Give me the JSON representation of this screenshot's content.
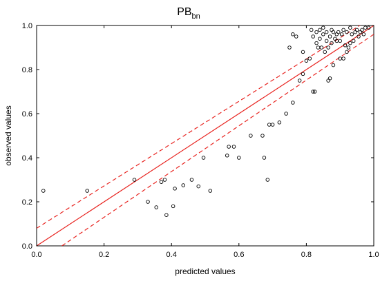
{
  "chart_data": {
    "type": "scatter",
    "title": "PB",
    "title_subscript": "bn",
    "xlabel": "predicted values",
    "ylabel": "observed values",
    "xlim": [
      0,
      1
    ],
    "ylim": [
      0,
      1
    ],
    "x_ticks": [
      "0.0",
      "0.2",
      "0.4",
      "0.6",
      "0.8",
      "1.0"
    ],
    "y_ticks": [
      "0.0",
      "0.2",
      "0.4",
      "0.6",
      "0.8",
      "1.0"
    ],
    "grid": false,
    "points": [
      [
        0.02,
        0.25
      ],
      [
        0.15,
        0.25
      ],
      [
        0.29,
        0.3
      ],
      [
        0.33,
        0.2
      ],
      [
        0.355,
        0.175
      ],
      [
        0.37,
        0.29
      ],
      [
        0.38,
        0.3
      ],
      [
        0.385,
        0.14
      ],
      [
        0.405,
        0.18
      ],
      [
        0.41,
        0.26
      ],
      [
        0.435,
        0.275
      ],
      [
        0.46,
        0.3
      ],
      [
        0.48,
        0.27
      ],
      [
        0.495,
        0.4
      ],
      [
        0.515,
        0.25
      ],
      [
        0.565,
        0.41
      ],
      [
        0.57,
        0.45
      ],
      [
        0.585,
        0.45
      ],
      [
        0.6,
        0.4
      ],
      [
        0.635,
        0.5
      ],
      [
        0.67,
        0.5
      ],
      [
        0.675,
        0.4
      ],
      [
        0.685,
        0.3
      ],
      [
        0.69,
        0.55
      ],
      [
        0.7,
        0.55
      ],
      [
        0.72,
        0.56
      ],
      [
        0.74,
        0.6
      ],
      [
        0.76,
        0.65
      ],
      [
        0.75,
        0.9
      ],
      [
        0.76,
        0.96
      ],
      [
        0.77,
        0.95
      ],
      [
        0.78,
        0.75
      ],
      [
        0.79,
        0.78
      ],
      [
        0.79,
        0.88
      ],
      [
        0.8,
        0.84
      ],
      [
        0.81,
        0.85
      ],
      [
        0.82,
        0.7
      ],
      [
        0.825,
        0.7
      ],
      [
        0.815,
        0.98
      ],
      [
        0.82,
        0.95
      ],
      [
        0.83,
        0.92
      ],
      [
        0.83,
        0.97
      ],
      [
        0.835,
        0.9
      ],
      [
        0.84,
        0.94
      ],
      [
        0.84,
        0.98
      ],
      [
        0.845,
        0.9
      ],
      [
        0.85,
        0.96
      ],
      [
        0.85,
        0.99
      ],
      [
        0.855,
        0.88
      ],
      [
        0.86,
        0.93
      ],
      [
        0.86,
        0.97
      ],
      [
        0.865,
        0.75
      ],
      [
        0.865,
        0.9
      ],
      [
        0.87,
        0.76
      ],
      [
        0.87,
        0.95
      ],
      [
        0.875,
        0.98
      ],
      [
        0.875,
        0.92
      ],
      [
        0.88,
        0.97
      ],
      [
        0.88,
        0.82
      ],
      [
        0.885,
        0.94
      ],
      [
        0.89,
        0.96
      ],
      [
        0.89,
        0.93
      ],
      [
        0.895,
        0.97
      ],
      [
        0.9,
        0.85
      ],
      [
        0.9,
        0.93
      ],
      [
        0.905,
        0.96
      ],
      [
        0.91,
        0.85
      ],
      [
        0.91,
        0.98
      ],
      [
        0.915,
        0.91
      ],
      [
        0.92,
        0.88
      ],
      [
        0.92,
        0.97
      ],
      [
        0.925,
        0.9
      ],
      [
        0.93,
        0.92
      ],
      [
        0.93,
        0.99
      ],
      [
        0.935,
        0.96
      ],
      [
        0.94,
        0.93
      ],
      [
        0.945,
        0.97
      ],
      [
        0.95,
        0.98
      ],
      [
        0.955,
        0.95
      ],
      [
        0.96,
        0.97
      ],
      [
        0.965,
        0.98
      ],
      [
        0.97,
        0.96
      ],
      [
        0.975,
        0.99
      ],
      [
        0.985,
        0.99
      ]
    ],
    "lines": [
      {
        "style": "solid",
        "x": [
          0,
          1
        ],
        "y": [
          0,
          1
        ]
      },
      {
        "style": "dashed",
        "x": [
          0,
          1
        ],
        "y": [
          0.08,
          1.04
        ]
      },
      {
        "style": "dashed",
        "x": [
          0.075,
          1
        ],
        "y": [
          0,
          0.96
        ]
      }
    ],
    "point_color": "#000000",
    "line_color": "#e8231f"
  }
}
